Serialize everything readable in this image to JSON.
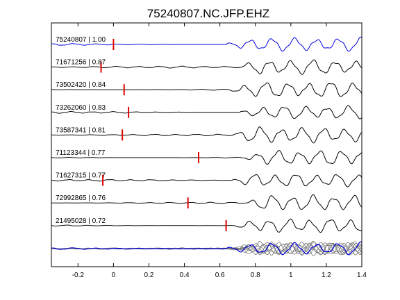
{
  "chart_data": {
    "type": "line",
    "title": "75240807.NC.JFP.EHZ",
    "xlabel": "",
    "ylabel": "",
    "xlim": [
      -0.35,
      1.4
    ],
    "xticks": [
      -0.2,
      0,
      0.2,
      0.4,
      0.6,
      0.8,
      1,
      1.2,
      1.4
    ],
    "xtick_labels": [
      "-0.2",
      "0",
      "0.2",
      "0.4",
      "0.6",
      "0.8",
      "1",
      "1.2",
      "1.4"
    ],
    "grid": false,
    "legend": "none",
    "pick_color": "#e00000",
    "reference_color": "#0000dd",
    "trace_color": "#000000",
    "stack_color": "#777777",
    "series": [
      {
        "label": "75240807 | 1.00",
        "event_id": "75240807",
        "correlation": 1.0,
        "pick_time": 0.0,
        "reference": true
      },
      {
        "label": "71671256 | 0.87",
        "event_id": "71671256",
        "correlation": 0.87,
        "pick_time": -0.07
      },
      {
        "label": "73502420 | 0.84",
        "event_id": "73502420",
        "correlation": 0.84,
        "pick_time": 0.06
      },
      {
        "label": "73262060 | 0.83",
        "event_id": "73262060",
        "correlation": 0.83,
        "pick_time": 0.085
      },
      {
        "label": "73587341 | 0.81",
        "event_id": "73587341",
        "correlation": 0.81,
        "pick_time": 0.05
      },
      {
        "label": "71123344 | 0.77",
        "event_id": "71123344",
        "correlation": 0.77,
        "pick_time": 0.48
      },
      {
        "label": "71627315 | 0.77",
        "event_id": "71627315",
        "correlation": 0.77,
        "pick_time": -0.06
      },
      {
        "label": "72992865 | 0.76",
        "event_id": "72992865",
        "correlation": 0.76,
        "pick_time": 0.42
      },
      {
        "label": "21495028 | 0.72",
        "event_id": "21495028",
        "correlation": 0.72,
        "pick_time": 0.635
      }
    ],
    "stack": {
      "traces_overlaid": 9
    }
  }
}
